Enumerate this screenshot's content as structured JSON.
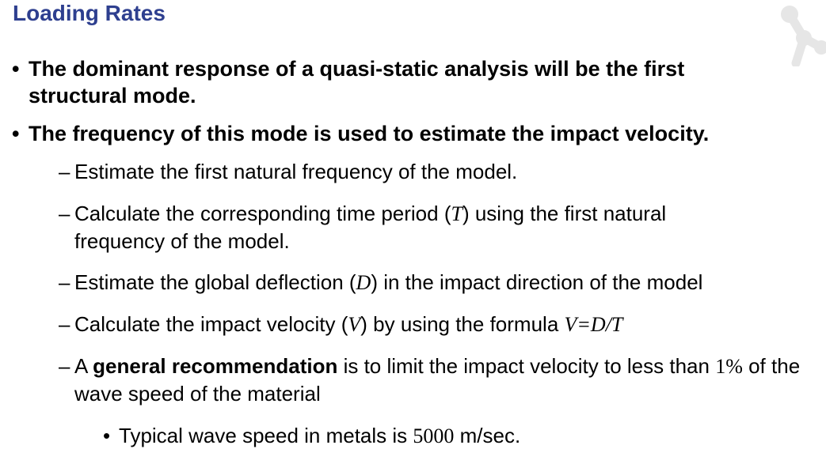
{
  "slide": {
    "title": "Loading Rates",
    "logo_icon": "molecule-logo-icon",
    "accent_color": "#2e3f8f",
    "bullets": [
      {
        "bullet_glyph": "•",
        "text": "The dominant response of a quasi-static analysis will be the first structural mode."
      },
      {
        "bullet_glyph": "•",
        "text": "The frequency of this mode is used to estimate the impact velocity."
      }
    ],
    "sub_bullets": [
      {
        "dash": "–",
        "text": "Estimate the first natural frequency of the model."
      },
      {
        "dash": "–",
        "pre": "Calculate the corresponding time period (",
        "sym": "T",
        "post": ") using the first natural frequency of the model."
      },
      {
        "dash": "–",
        "pre": "Estimate the global deflection (",
        "sym": "D",
        "post": ") in the impact direction of the model"
      },
      {
        "dash": "–",
        "pre": "Calculate the impact velocity (",
        "sym": "V",
        "mid": ") by using the formula ",
        "formula": "V=D/T"
      },
      {
        "dash": "–",
        "pre": "A ",
        "bold": "general recommendation",
        "mid": " is to limit the impact velocity to less than ",
        "value": "1%",
        "post": " of the wave speed of the material"
      }
    ],
    "sub_sub_bullet": {
      "bullet_glyph": "•",
      "pre": "Typical wave speed in metals is ",
      "value": "5000",
      "post": " m/sec."
    }
  }
}
